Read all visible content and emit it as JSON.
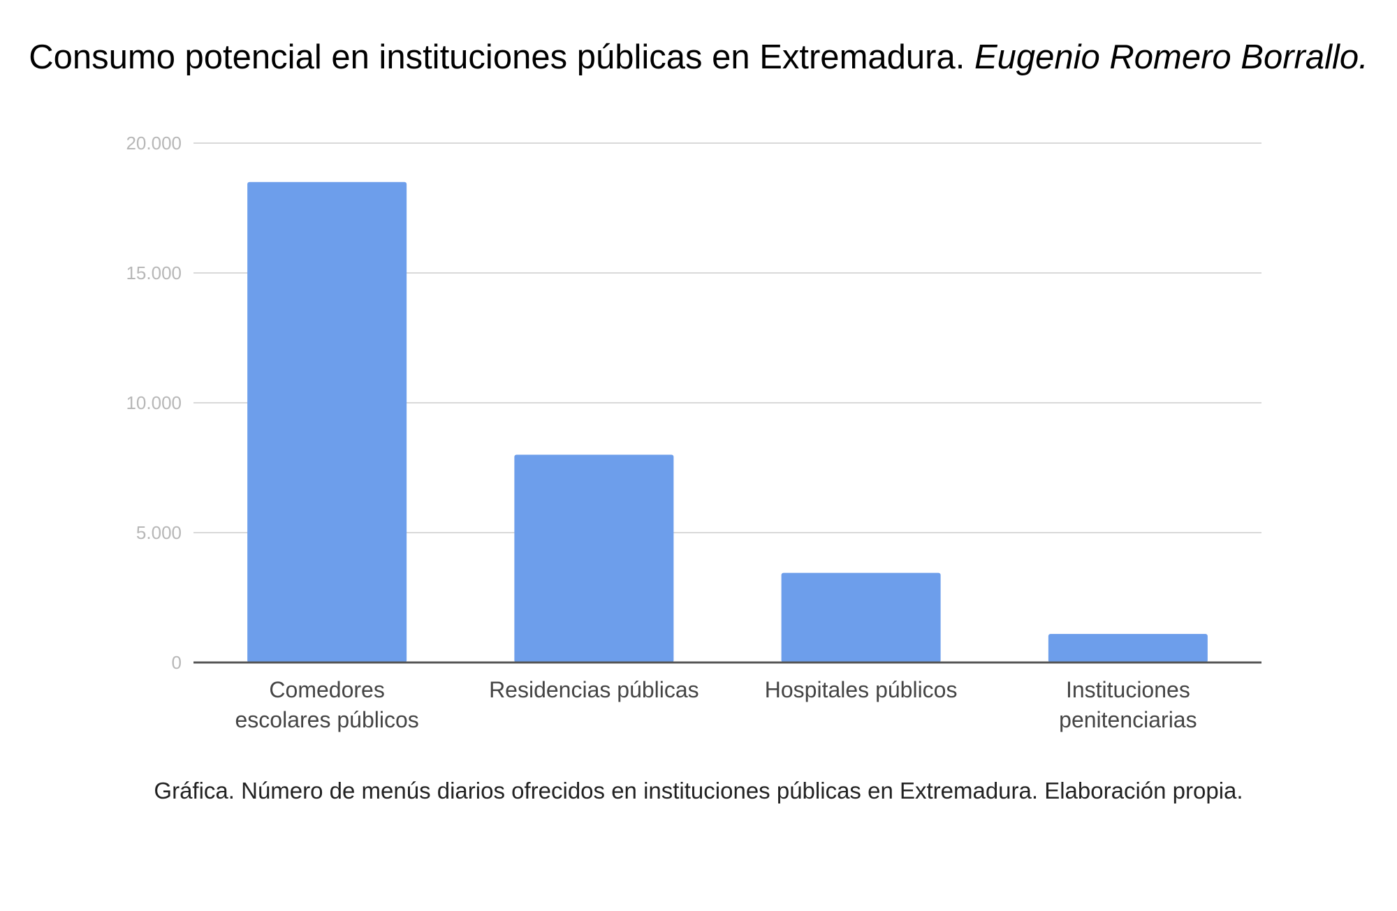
{
  "title": {
    "main": "Consumo potencial en instituciones públicas en Extremadura.",
    "author": "Eugenio Romero Borrallo."
  },
  "caption": "Gráfica. Número de menús diarios ofrecidos en instituciones públicas en Extremadura. Elaboración propia.",
  "colors": {
    "bar": "#6d9eeb",
    "grid": "#d9d9d9",
    "axis": "#555555",
    "tick_label": "#b7b7b7",
    "category_label": "#444444"
  },
  "chart_data": {
    "type": "bar",
    "title": "Consumo potencial en instituciones públicas en Extremadura.",
    "categories": [
      [
        "Comedores",
        "escolares públicos"
      ],
      [
        "Residencias públicas"
      ],
      [
        "Hospitales públicos"
      ],
      [
        "Instituciones",
        "penitenciarias"
      ]
    ],
    "values": [
      18500,
      8000,
      3450,
      1100
    ],
    "ylim": [
      0,
      20000
    ],
    "yticks": [
      0,
      5000,
      10000,
      15000,
      20000
    ],
    "ytick_labels": [
      "0",
      "5.000",
      "10.000",
      "15.000",
      "20.000"
    ],
    "xlabel": "",
    "ylabel": "",
    "grid": true,
    "legend": "none"
  }
}
